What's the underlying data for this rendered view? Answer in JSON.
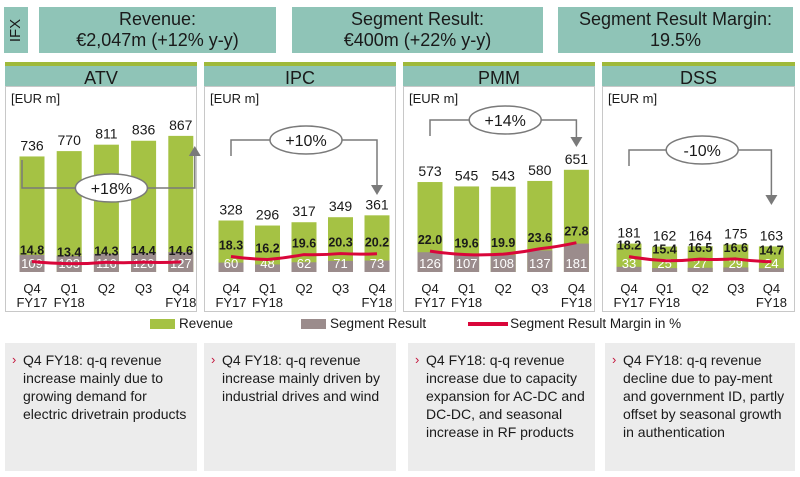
{
  "ifx_label": "IFX",
  "kpis": [
    {
      "title": "Revenue:",
      "value": "€2,047m (+12% y-y)"
    },
    {
      "title": "Segment Result:",
      "value": "€400m (+22% y-y)"
    },
    {
      "title": "Segment Result Margin:",
      "value": "19.5%"
    }
  ],
  "legend": {
    "revenue": "Revenue",
    "segment_result": "Segment Result",
    "margin": "Segment Result Margin in %"
  },
  "notes": [
    "Q4 FY18: q-q revenue increase mainly due to growing demand for electric drivetrain products",
    "Q4 FY18: q-q revenue increase mainly driven by industrial drives and wind",
    "Q4 FY18: q-q revenue increase due to capacity expansion for AC-DC and DC-DC, and seasonal increase in RF products",
    "Q4 FY18: q-q revenue decline due to pay-ment and government ID, partly offset by seasonal growth in authentication"
  ],
  "colors": {
    "revenue": "#a5c244",
    "segment_result": "#9b8c8c",
    "margin_line": "#d9063a",
    "header": "#8fc4b7",
    "accent": "#c4163d"
  },
  "chart_data": [
    {
      "type": "bar",
      "segment": "ATV",
      "unit": "[EUR m]",
      "categories": [
        "Q4 FY17",
        "Q1 FY18",
        "Q2",
        "Q3",
        "Q4 FY18"
      ],
      "series": [
        {
          "name": "Revenue",
          "values": [
            736,
            770,
            811,
            836,
            867
          ]
        },
        {
          "name": "Segment Result",
          "values": [
            109,
            103,
            116,
            120,
            127
          ]
        },
        {
          "name": "Segment Result Margin in %",
          "values": [
            14.8,
            13.4,
            14.3,
            14.4,
            14.6
          ]
        }
      ],
      "annotation": "+18%"
    },
    {
      "type": "bar",
      "segment": "IPC",
      "unit": "[EUR m]",
      "categories": [
        "Q4 FY17",
        "Q1 FY18",
        "Q2",
        "Q3",
        "Q4 FY18"
      ],
      "series": [
        {
          "name": "Revenue",
          "values": [
            328,
            296,
            317,
            349,
            361
          ]
        },
        {
          "name": "Segment Result",
          "values": [
            60,
            48,
            62,
            71,
            73
          ]
        },
        {
          "name": "Segment Result Margin in %",
          "values": [
            18.3,
            16.2,
            19.6,
            20.3,
            20.2
          ]
        }
      ],
      "annotation": "+10%"
    },
    {
      "type": "bar",
      "segment": "PMM",
      "unit": "[EUR m]",
      "categories": [
        "Q4 FY17",
        "Q1 FY18",
        "Q2",
        "Q3",
        "Q4 FY18"
      ],
      "series": [
        {
          "name": "Revenue",
          "values": [
            573,
            545,
            543,
            580,
            651
          ]
        },
        {
          "name": "Segment Result",
          "values": [
            126,
            107,
            108,
            137,
            181
          ]
        },
        {
          "name": "Segment Result Margin in %",
          "values": [
            22.0,
            19.6,
            19.9,
            23.6,
            27.8
          ]
        }
      ],
      "annotation": "+14%"
    },
    {
      "type": "bar",
      "segment": "DSS",
      "unit": "[EUR m]",
      "categories": [
        "Q4 FY17",
        "Q1 FY18",
        "Q2",
        "Q3",
        "Q4 FY18"
      ],
      "series": [
        {
          "name": "Revenue",
          "values": [
            181,
            162,
            164,
            175,
            163
          ]
        },
        {
          "name": "Segment Result",
          "values": [
            33,
            25,
            27,
            29,
            24
          ]
        },
        {
          "name": "Segment Result Margin in %",
          "values": [
            18.2,
            15.4,
            16.5,
            16.6,
            14.7
          ]
        }
      ],
      "annotation": "-10%"
    }
  ]
}
